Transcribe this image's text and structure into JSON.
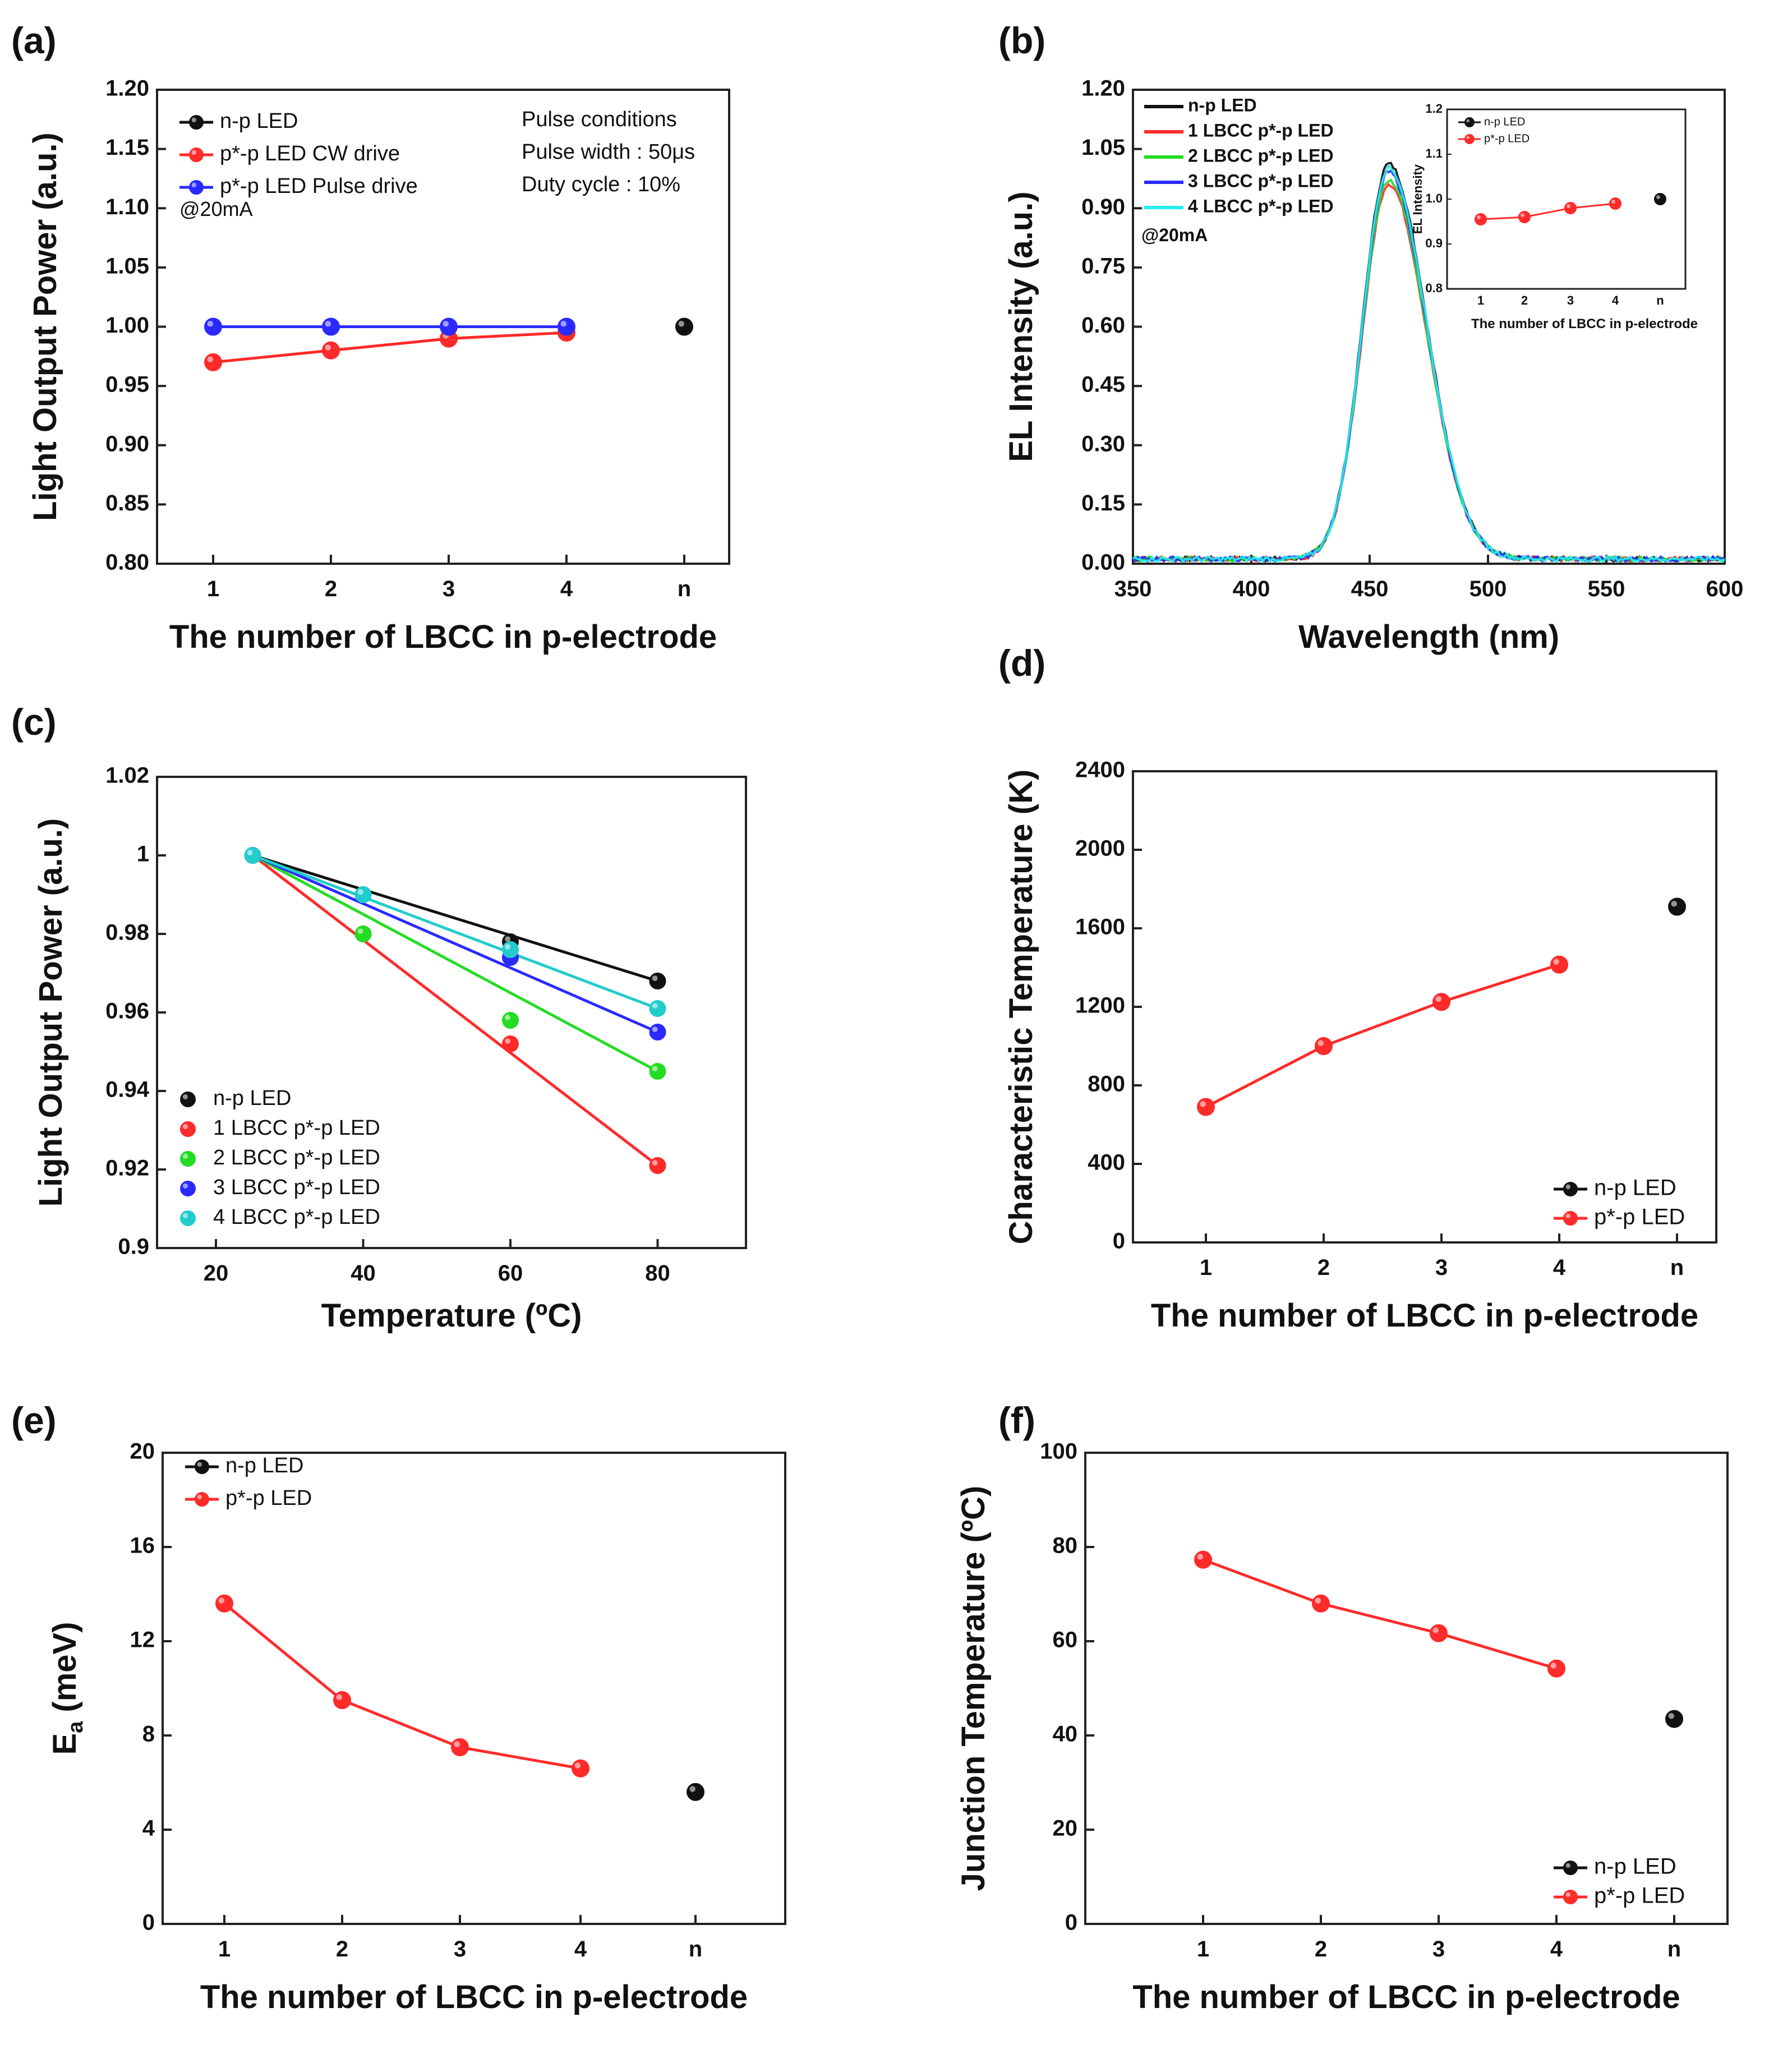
{
  "figure": {
    "description_visible": false
  },
  "chart_data": [
    {
      "id": "a",
      "panel_label": "(a)",
      "type": "line",
      "categories": [
        "1",
        "2",
        "3",
        "4",
        "n"
      ],
      "xlabel": "The number of LBCC in p-electrode",
      "ylabel": "Light Output Power (a.u.)",
      "ylim": [
        0.8,
        1.2
      ],
      "yticks": [
        "0.80",
        "0.85",
        "0.90",
        "0.95",
        "1.00",
        "1.05",
        "1.10",
        "1.15",
        "1.20"
      ],
      "legend_position": "top-left",
      "series": [
        {
          "name": "n-p LED",
          "color": "#111111",
          "points": [
            [
              5,
              1.0
            ]
          ],
          "connect": false
        },
        {
          "name": "p*-p LED CW drive",
          "color": "#ff2a2a",
          "points": [
            [
              1,
              0.97
            ],
            [
              2,
              0.98
            ],
            [
              3,
              0.99
            ],
            [
              4,
              0.995
            ]
          ],
          "connect": true
        },
        {
          "name": "p*-p LED Pulse drive",
          "color": "#2a2aff",
          "points": [
            [
              1,
              1.0
            ],
            [
              2,
              1.0
            ],
            [
              3,
              1.0
            ],
            [
              4,
              1.0
            ]
          ],
          "connect": true
        }
      ],
      "annotations": [
        "@20mA",
        "Pulse conditions",
        "Pulse width : 50μs",
        "Duty cycle : 10%"
      ]
    },
    {
      "id": "b",
      "panel_label": "(b)",
      "type": "line",
      "xlabel": "Wavelength (nm)",
      "ylabel": "EL Intensity (a.u.)",
      "xlim": [
        350,
        600
      ],
      "xticks": [
        "350",
        "400",
        "450",
        "500",
        "550",
        "600"
      ],
      "ylim": [
        0.0,
        1.2
      ],
      "yticks": [
        "0.00",
        "0.15",
        "0.30",
        "0.45",
        "0.60",
        "0.75",
        "0.90",
        "1.05",
        "1.20"
      ],
      "legend_position": "top-left",
      "series": [
        {
          "name": "n-p LED",
          "color": "#111111",
          "peak": 1.0
        },
        {
          "name": "1 LBCC p*-p LED",
          "color": "#ff2a2a",
          "peak": 0.95
        },
        {
          "name": "2 LBCC p*-p LED",
          "color": "#22dd22",
          "peak": 0.96
        },
        {
          "name": "3 LBCC p*-p LED",
          "color": "#2a2aff",
          "peak": 0.98
        },
        {
          "name": "4 LBCC p*-p LED",
          "color": "#22eeee",
          "peak": 0.99
        }
      ],
      "peak_wavelength": 458,
      "annotations": [
        "@20mA"
      ],
      "inset": {
        "type": "line",
        "categories": [
          "1",
          "2",
          "3",
          "4",
          "n"
        ],
        "xlabel": "The number of LBCC in p-electrode",
        "ylabel": "EL Intensity",
        "ylim": [
          0.8,
          1.2
        ],
        "yticks": [
          "0.8",
          "0.9",
          "1.0",
          "1.1",
          "1.2"
        ],
        "series": [
          {
            "name": "n-p LED",
            "color": "#111111",
            "points": [
              [
                5,
                1.0
              ]
            ],
            "connect": false
          },
          {
            "name": "p*-p LED",
            "color": "#ff2a2a",
            "points": [
              [
                1,
                0.955
              ],
              [
                2,
                0.96
              ],
              [
                3,
                0.98
              ],
              [
                4,
                0.99
              ]
            ],
            "connect": true
          }
        ]
      }
    },
    {
      "id": "c",
      "panel_label": "(c)",
      "type": "scatter",
      "xlabel": "Temperature (ºC)",
      "ylabel": "Light Output Power (a.u.)",
      "xlim": [
        12,
        92
      ],
      "xticks": [
        "20",
        "40",
        "60",
        "80"
      ],
      "ylim": [
        0.9,
        1.02
      ],
      "yticks": [
        "0.9",
        "0.92",
        "0.94",
        "0.96",
        "0.98",
        "1",
        "1.02"
      ],
      "legend_position": "bottom-left",
      "series": [
        {
          "name": "n-p LED",
          "color": "#111111",
          "points": [
            [
              25,
              1.0
            ],
            [
              40,
              0.99
            ],
            [
              60,
              0.978
            ],
            [
              80,
              0.968
            ]
          ],
          "fit": [
            [
              25,
              1.0
            ],
            [
              80,
              0.968
            ]
          ]
        },
        {
          "name": "1 LBCC p*-p LED",
          "color": "#ff2a2a",
          "points": [
            [
              25,
              1.0
            ],
            [
              40,
              0.98
            ],
            [
              60,
              0.952
            ],
            [
              80,
              0.921
            ]
          ],
          "fit": [
            [
              25,
              1.0
            ],
            [
              80,
              0.921
            ]
          ]
        },
        {
          "name": "2 LBCC p*-p LED",
          "color": "#22dd22",
          "points": [
            [
              25,
              1.0
            ],
            [
              40,
              0.98
            ],
            [
              60,
              0.958
            ],
            [
              80,
              0.945
            ]
          ],
          "fit": [
            [
              25,
              1.0
            ],
            [
              80,
              0.945
            ]
          ]
        },
        {
          "name": "3 LBCC p*-p LED",
          "color": "#2a2aff",
          "points": [
            [
              25,
              1.0
            ],
            [
              40,
              0.99
            ],
            [
              60,
              0.974
            ],
            [
              80,
              0.955
            ]
          ],
          "fit": [
            [
              25,
              1.0
            ],
            [
              80,
              0.955
            ]
          ]
        },
        {
          "name": "4 LBCC p*-p LED",
          "color": "#22cccc",
          "points": [
            [
              25,
              1.0
            ],
            [
              40,
              0.99
            ],
            [
              60,
              0.976
            ],
            [
              80,
              0.961
            ]
          ],
          "fit": [
            [
              25,
              1.0
            ],
            [
              80,
              0.961
            ]
          ]
        }
      ]
    },
    {
      "id": "d",
      "panel_label": "(d)",
      "type": "line",
      "categories": [
        "1",
        "2",
        "3",
        "4",
        "n"
      ],
      "xlabel": "The number of LBCC in p-electrode",
      "ylabel": "Characteristic Temperature (K)",
      "ylim": [
        0,
        2400
      ],
      "yticks": [
        "0",
        "400",
        "800",
        "1200",
        "1600",
        "2000",
        "2400"
      ],
      "legend_position": "bottom-right",
      "series": [
        {
          "name": "n-p LED",
          "color": "#111111",
          "points": [
            [
              5,
              1710
            ]
          ],
          "connect": false
        },
        {
          "name": "p*-p LED",
          "color": "#ff2a2a",
          "points": [
            [
              1,
              690
            ],
            [
              2,
              1000
            ],
            [
              3,
              1225
            ],
            [
              4,
              1415
            ]
          ],
          "connect": true
        }
      ]
    },
    {
      "id": "e",
      "panel_label": "(e)",
      "type": "line",
      "categories": [
        "1",
        "2",
        "3",
        "4",
        "n"
      ],
      "xlabel": "The number of LBCC in p-electrode",
      "ylabel_main": "E",
      "ylabel_sub": "a",
      "ylabel_rest": " (meV)",
      "ylim": [
        0,
        20
      ],
      "yticks": [
        "0",
        "4",
        "8",
        "12",
        "16",
        "20"
      ],
      "legend_position": "top-left",
      "series": [
        {
          "name": "n-p LED",
          "color": "#111111",
          "points": [
            [
              5,
              5.6
            ]
          ],
          "connect": false
        },
        {
          "name": "p*-p LED",
          "color": "#ff2a2a",
          "points": [
            [
              1,
              13.6
            ],
            [
              2,
              9.5
            ],
            [
              3,
              7.5
            ],
            [
              4,
              6.6
            ]
          ],
          "connect": true
        }
      ]
    },
    {
      "id": "f",
      "panel_label": "(f)",
      "type": "line",
      "categories": [
        "1",
        "2",
        "3",
        "4",
        "n"
      ],
      "xlabel": "The number of LBCC in p-electrode",
      "ylabel": "Junction Temperature (ºC)",
      "ylim": [
        0,
        100
      ],
      "yticks": [
        "0",
        "20",
        "40",
        "60",
        "80",
        "100"
      ],
      "legend_position": "bottom-right",
      "series": [
        {
          "name": "n-p LED",
          "color": "#111111",
          "points": [
            [
              5,
              43.5
            ]
          ],
          "connect": false
        },
        {
          "name": "p*-p LED",
          "color": "#ff2a2a",
          "points": [
            [
              1,
              77.3
            ],
            [
              2,
              68.0
            ],
            [
              3,
              61.7
            ],
            [
              4,
              54.2
            ]
          ],
          "connect": true
        }
      ]
    }
  ]
}
